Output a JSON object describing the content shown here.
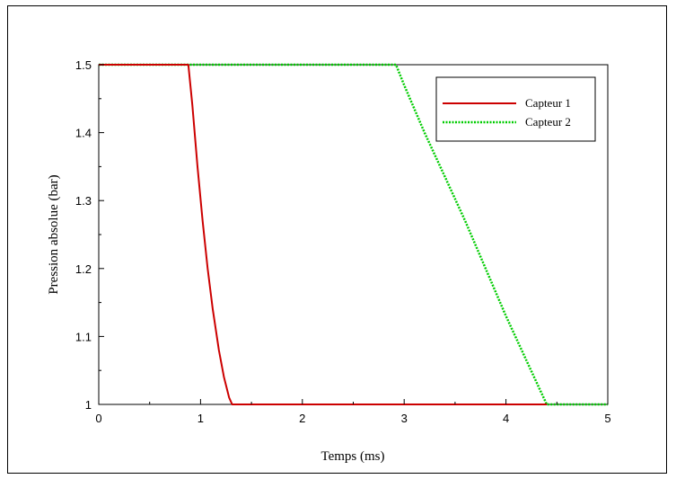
{
  "chart_data": {
    "type": "line",
    "xlabel": "Temps (ms)",
    "ylabel": "Pression absolue (bar)",
    "xlim": [
      0,
      5
    ],
    "ylim": [
      1,
      1.5
    ],
    "xticks": [
      "0",
      "1",
      "2",
      "3",
      "4",
      "5"
    ],
    "yticks": [
      "1",
      "1.1",
      "1.2",
      "1.3",
      "1.4",
      "1.5"
    ],
    "grid": false,
    "legend_position": "top-right",
    "series": [
      {
        "name": "Capteur 1",
        "color": "#cc0000",
        "style": "solid",
        "points": [
          [
            0,
            1.5
          ],
          [
            0.88,
            1.5
          ],
          [
            0.92,
            1.44
          ],
          [
            0.97,
            1.35
          ],
          [
            1.02,
            1.27
          ],
          [
            1.07,
            1.2
          ],
          [
            1.12,
            1.14
          ],
          [
            1.18,
            1.08
          ],
          [
            1.23,
            1.04
          ],
          [
            1.28,
            1.01
          ],
          [
            1.31,
            1.0
          ],
          [
            4.4,
            1.0
          ]
        ]
      },
      {
        "name": "Capteur 2",
        "color": "#00cc00",
        "style": "dotted",
        "points": [
          [
            0,
            1.5
          ],
          [
            2.92,
            1.5
          ],
          [
            3.0,
            1.47
          ],
          [
            3.2,
            1.4
          ],
          [
            3.4,
            1.335
          ],
          [
            3.6,
            1.27
          ],
          [
            3.8,
            1.2
          ],
          [
            4.0,
            1.13
          ],
          [
            4.2,
            1.065
          ],
          [
            4.4,
            1.0
          ],
          [
            5.0,
            1.0
          ]
        ]
      }
    ]
  }
}
